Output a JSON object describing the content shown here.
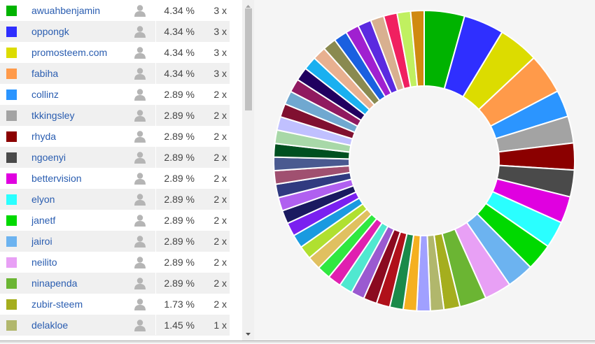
{
  "table": {
    "rows": [
      {
        "color": "#00b300",
        "name": "awuahbenjamin",
        "pct": "4.34 %",
        "count": "3 x"
      },
      {
        "color": "#2f2fff",
        "name": "oppongk",
        "pct": "4.34 %",
        "count": "3 x"
      },
      {
        "color": "#dcdc00",
        "name": "promosteem.com",
        "pct": "4.34 %",
        "count": "3 x"
      },
      {
        "color": "#ff9a4a",
        "name": "fabiha",
        "pct": "4.34 %",
        "count": "3 x"
      },
      {
        "color": "#2b95ff",
        "name": "collinz",
        "pct": "2.89 %",
        "count": "2 x"
      },
      {
        "color": "#a3a3a3",
        "name": "tkkingsley",
        "pct": "2.89 %",
        "count": "2 x"
      },
      {
        "color": "#8b0000",
        "name": "rhyda",
        "pct": "2.89 %",
        "count": "2 x"
      },
      {
        "color": "#4a4a4a",
        "name": "ngoenyi",
        "pct": "2.89 %",
        "count": "2 x"
      },
      {
        "color": "#e000e0",
        "name": "bettervision",
        "pct": "2.89 %",
        "count": "2 x"
      },
      {
        "color": "#2affff",
        "name": "elyon",
        "pct": "2.89 %",
        "count": "2 x"
      },
      {
        "color": "#00d900",
        "name": "janetf",
        "pct": "2.89 %",
        "count": "2 x"
      },
      {
        "color": "#6cb3f0",
        "name": "jairoi",
        "pct": "2.89 %",
        "count": "2 x"
      },
      {
        "color": "#e8a0f5",
        "name": "neilito",
        "pct": "2.89 %",
        "count": "2 x"
      },
      {
        "color": "#6bb533",
        "name": "ninapenda",
        "pct": "2.89 %",
        "count": "2 x"
      },
      {
        "color": "#a5ae1e",
        "name": "zubir-steem",
        "pct": "1.73 %",
        "count": "2 x"
      },
      {
        "color": "#b1b76c",
        "name": "delakloe",
        "pct": "1.45 %",
        "count": "1 x"
      }
    ]
  },
  "chart_data": {
    "type": "pie",
    "donut": true,
    "categories": [
      "awuahbenjamin",
      "oppongk",
      "promosteem.com",
      "fabiha",
      "collinz",
      "tkkingsley",
      "rhyda",
      "ngoenyi",
      "bettervision",
      "elyon",
      "janetf",
      "jairoi",
      "neilito",
      "ninapenda",
      "zubir-steem",
      "delakloe"
    ],
    "values": [
      4.34,
      4.34,
      4.34,
      4.34,
      2.89,
      2.89,
      2.89,
      2.89,
      2.89,
      2.89,
      2.89,
      2.89,
      2.89,
      2.89,
      1.73,
      1.45
    ],
    "colors": [
      "#00b300",
      "#2f2fff",
      "#dcdc00",
      "#ff9a4a",
      "#2b95ff",
      "#a3a3a3",
      "#8b0000",
      "#4a4a4a",
      "#e000e0",
      "#2affff",
      "#00d900",
      "#6cb3f0",
      "#e8a0f5",
      "#6bb533",
      "#a5ae1e",
      "#b1b76c"
    ],
    "other_values": [
      1.45,
      1.45,
      1.45,
      1.45,
      1.45,
      1.45,
      1.45,
      1.45,
      1.45,
      1.45,
      1.45,
      1.45,
      1.45,
      1.45,
      1.45,
      1.45,
      1.45,
      1.45,
      1.45,
      1.45,
      1.45,
      1.45,
      1.45,
      1.45,
      1.45,
      1.45,
      1.45,
      1.45,
      1.45,
      1.45,
      1.45,
      1.45,
      1.45,
      1.45,
      1.45
    ],
    "other_colors": [
      "#a0a0ff",
      "#f5b020",
      "#1a8a4a",
      "#b0101a",
      "#8b0a20",
      "#9a5ad0",
      "#50e8d0",
      "#e020b0",
      "#30e840",
      "#e0c060",
      "#b0e030",
      "#1a9ae0",
      "#7a20f0",
      "#1a1a60",
      "#b060f0",
      "#303a80",
      "#a05070",
      "#4a5a90",
      "#005020",
      "#a8d8a8",
      "#c0c0ff",
      "#801030",
      "#70a8d0",
      "#901a60",
      "#200060",
      "#1ab0f0",
      "#e8b090",
      "#8a8a50",
      "#1a60e0",
      "#a020d0",
      "#5a2ae0",
      "#d8b090",
      "#f02060",
      "#c0f060",
      "#d08a10"
    ],
    "title": "",
    "xlabel": "",
    "ylabel": ""
  }
}
